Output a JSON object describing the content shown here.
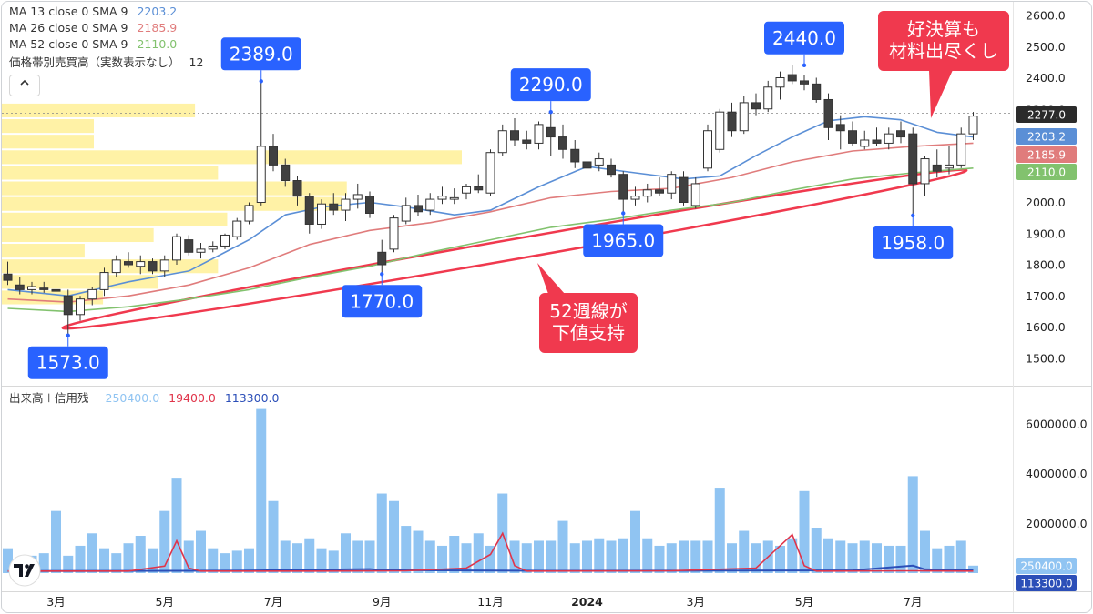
{
  "legend": {
    "ma13": {
      "label": "MA 13 close 0 SMA 9",
      "value": "2203.2"
    },
    "ma26": {
      "label": "MA 26 close 0 SMA 9",
      "value": "2185.9"
    },
    "ma52": {
      "label": "MA 52 close 0 SMA 9",
      "value": "2110.0"
    },
    "vp": {
      "label": "価格帯別売買高（実数表示なし）",
      "value": "12"
    },
    "collapse_icon": "chevron-up-icon"
  },
  "volume_legend": {
    "title": "出来高＋信用残",
    "v1": "250400.0",
    "v2": "19400.0",
    "v3": "113300.0"
  },
  "colors": {
    "ma13": "#5b8fd6",
    "ma26": "#e07c7c",
    "ma52": "#82c26e",
    "bull": "#ffffff",
    "bear": "#404040",
    "volume": "#90c4f2",
    "margin_buy": "#e0344a",
    "margin_sell": "#2c4fb8",
    "callout_blue": "#2962ff",
    "callout_red": "#f0394e",
    "profile": "#fff2a6"
  },
  "chart_data": {
    "type": "candlestick",
    "price_axis": {
      "min": 1420,
      "max": 2620,
      "ticks": [
        1500,
        1600,
        1700,
        1800,
        1900,
        2000,
        2100,
        2200,
        2300,
        2400,
        2500,
        2600
      ]
    },
    "volume_axis": {
      "min": 0,
      "max": 6800000,
      "ticks": [
        2000000,
        4000000,
        6000000
      ],
      "tick_labels": [
        "2000000.0",
        "4000000.0",
        "6000000.0"
      ]
    },
    "x_labels": [
      {
        "label": "3月",
        "index": 4
      },
      {
        "label": "5月",
        "index": 13
      },
      {
        "label": "7月",
        "index": 22
      },
      {
        "label": "9月",
        "index": 31
      },
      {
        "label": "11月",
        "index": 40
      },
      {
        "label": "2024",
        "index": 48
      },
      {
        "label": "3月",
        "index": 57
      },
      {
        "label": "5月",
        "index": 66
      },
      {
        "label": "7月",
        "index": 75
      }
    ],
    "candles": [
      [
        1770,
        1810,
        1735,
        1750
      ],
      [
        1735,
        1760,
        1705,
        1720
      ],
      [
        1720,
        1745,
        1705,
        1730
      ],
      [
        1725,
        1745,
        1710,
        1720
      ],
      [
        1720,
        1740,
        1705,
        1715
      ],
      [
        1700,
        1720,
        1573,
        1640
      ],
      [
        1640,
        1700,
        1620,
        1690
      ],
      [
        1690,
        1730,
        1670,
        1720
      ],
      [
        1720,
        1790,
        1700,
        1775
      ],
      [
        1775,
        1830,
        1760,
        1815
      ],
      [
        1810,
        1840,
        1790,
        1800
      ],
      [
        1795,
        1830,
        1770,
        1810
      ],
      [
        1810,
        1820,
        1770,
        1780
      ],
      [
        1780,
        1830,
        1760,
        1815
      ],
      [
        1815,
        1900,
        1800,
        1890
      ],
      [
        1880,
        1895,
        1830,
        1840
      ],
      [
        1840,
        1870,
        1820,
        1850
      ],
      [
        1850,
        1875,
        1840,
        1860
      ],
      [
        1860,
        1900,
        1850,
        1895
      ],
      [
        1890,
        1950,
        1880,
        1940
      ],
      [
        1940,
        2000,
        1930,
        1990
      ],
      [
        2000,
        2389,
        1990,
        2180
      ],
      [
        2180,
        2220,
        2100,
        2120
      ],
      [
        2120,
        2140,
        2050,
        2070
      ],
      [
        2070,
        2085,
        1990,
        2020
      ],
      [
        2020,
        2030,
        1900,
        1930
      ],
      [
        1930,
        2010,
        1915,
        1995
      ],
      [
        1995,
        2030,
        1960,
        1975
      ],
      [
        1975,
        2030,
        1940,
        2010
      ],
      [
        2010,
        2060,
        1980,
        2025
      ],
      [
        2020,
        2035,
        1950,
        1965
      ],
      [
        1840,
        1880,
        1770,
        1800
      ],
      [
        1850,
        1960,
        1840,
        1950
      ],
      [
        1940,
        2015,
        1930,
        1990
      ],
      [
        1990,
        2025,
        1955,
        1970
      ],
      [
        1975,
        2030,
        1960,
        2010
      ],
      [
        2010,
        2050,
        1995,
        2020
      ],
      [
        2010,
        2045,
        1995,
        2015
      ],
      [
        2030,
        2060,
        2010,
        2050
      ],
      [
        2050,
        2090,
        2030,
        2040
      ],
      [
        2030,
        2170,
        2020,
        2160
      ],
      [
        2160,
        2250,
        2150,
        2230
      ],
      [
        2230,
        2270,
        2180,
        2200
      ],
      [
        2200,
        2230,
        2170,
        2190
      ],
      [
        2190,
        2260,
        2170,
        2250
      ],
      [
        2240,
        2290,
        2150,
        2210
      ],
      [
        2210,
        2250,
        2140,
        2170
      ],
      [
        2170,
        2200,
        2110,
        2130
      ],
      [
        2130,
        2160,
        2100,
        2110
      ],
      [
        2120,
        2160,
        2100,
        2140
      ],
      [
        2120,
        2140,
        2080,
        2090
      ],
      [
        2090,
        2100,
        1965,
        2010
      ],
      [
        2010,
        2050,
        1990,
        2020
      ],
      [
        2020,
        2060,
        2000,
        2040
      ],
      [
        2040,
        2080,
        2020,
        2030
      ],
      [
        2030,
        2100,
        2010,
        2090
      ],
      [
        2080,
        2100,
        1990,
        2000
      ],
      [
        1990,
        2080,
        1980,
        2060
      ],
      [
        2110,
        2250,
        2100,
        2230
      ],
      [
        2170,
        2300,
        2160,
        2290
      ],
      [
        2290,
        2320,
        2210,
        2230
      ],
      [
        2230,
        2340,
        2220,
        2320
      ],
      [
        2320,
        2350,
        2280,
        2300
      ],
      [
        2300,
        2390,
        2290,
        2370
      ],
      [
        2370,
        2420,
        2330,
        2400
      ],
      [
        2410,
        2440,
        2380,
        2390
      ],
      [
        2390,
        2410,
        2360,
        2380
      ],
      [
        2380,
        2400,
        2320,
        2330
      ],
      [
        2330,
        2350,
        2200,
        2240
      ],
      [
        2250,
        2280,
        2170,
        2230
      ],
      [
        2230,
        2260,
        2180,
        2190
      ],
      [
        2180,
        2230,
        2170,
        2200
      ],
      [
        2200,
        2240,
        2180,
        2190
      ],
      [
        2190,
        2240,
        2170,
        2220
      ],
      [
        2230,
        2260,
        2190,
        2210
      ],
      [
        2220,
        2240,
        1958,
        2060
      ],
      [
        2060,
        2150,
        2020,
        2140
      ],
      [
        2120,
        2170,
        2080,
        2100
      ],
      [
        2110,
        2180,
        2090,
        2120
      ],
      [
        2120,
        2240,
        2110,
        2220
      ],
      [
        2220,
        2290,
        2200,
        2277
      ]
    ],
    "ma13": [
      [
        0,
        1720
      ],
      [
        5,
        1700
      ],
      [
        10,
        1745
      ],
      [
        15,
        1780
      ],
      [
        20,
        1880
      ],
      [
        23,
        1960
      ],
      [
        26,
        1985
      ],
      [
        30,
        2000
      ],
      [
        33,
        1985
      ],
      [
        37,
        1960
      ],
      [
        40,
        1975
      ],
      [
        44,
        2050
      ],
      [
        48,
        2115
      ],
      [
        52,
        2095
      ],
      [
        56,
        2075
      ],
      [
        59,
        2085
      ],
      [
        62,
        2150
      ],
      [
        65,
        2210
      ],
      [
        68,
        2262
      ],
      [
        71,
        2275
      ],
      [
        74,
        2265
      ],
      [
        77,
        2225
      ],
      [
        80,
        2210
      ]
    ],
    "ma26": [
      [
        0,
        1690
      ],
      [
        5,
        1680
      ],
      [
        10,
        1700
      ],
      [
        15,
        1735
      ],
      [
        20,
        1790
      ],
      [
        25,
        1865
      ],
      [
        30,
        1910
      ],
      [
        35,
        1935
      ],
      [
        40,
        1970
      ],
      [
        45,
        2015
      ],
      [
        50,
        2035
      ],
      [
        55,
        2045
      ],
      [
        60,
        2080
      ],
      [
        65,
        2130
      ],
      [
        70,
        2165
      ],
      [
        75,
        2180
      ],
      [
        80,
        2190
      ]
    ],
    "ma52": [
      [
        0,
        1660
      ],
      [
        5,
        1650
      ],
      [
        10,
        1665
      ],
      [
        15,
        1690
      ],
      [
        20,
        1720
      ],
      [
        25,
        1760
      ],
      [
        30,
        1795
      ],
      [
        35,
        1840
      ],
      [
        40,
        1880
      ],
      [
        45,
        1920
      ],
      [
        50,
        1945
      ],
      [
        55,
        1975
      ],
      [
        60,
        2000
      ],
      [
        65,
        2040
      ],
      [
        70,
        2075
      ],
      [
        75,
        2095
      ],
      [
        80,
        2110
      ]
    ],
    "volume": [
      1000000,
      600000,
      700000,
      800000,
      2500000,
      700000,
      1100000,
      1600000,
      1000000,
      800000,
      1200000,
      1500000,
      1000000,
      2500000,
      3800000,
      1300000,
      1700000,
      1000000,
      800000,
      900000,
      1000000,
      6600000,
      2900000,
      1300000,
      1200000,
      1400000,
      1000000,
      900000,
      1600000,
      1300000,
      1300000,
      3200000,
      2900000,
      1900000,
      1700000,
      1300000,
      1100000,
      1500000,
      1200000,
      1600000,
      1100000,
      3200000,
      1300000,
      1200000,
      1300000,
      1300000,
      2100000,
      1200000,
      1300000,
      1400000,
      1300000,
      1400000,
      2500000,
      1400000,
      1100000,
      1200000,
      1300000,
      1300000,
      1300000,
      3400000,
      1200000,
      1700000,
      1200000,
      1300000,
      1100000,
      1400000,
      3300000,
      1800000,
      1400000,
      1300000,
      1200000,
      1300000,
      1200000,
      1100000,
      1100000,
      3900000,
      1700000,
      1000000,
      1100000,
      1300000,
      300000
    ],
    "margin_buy": [
      [
        0,
        80000
      ],
      [
        10,
        80000
      ],
      [
        13,
        280000
      ],
      [
        14,
        1300000
      ],
      [
        15,
        200000
      ],
      [
        16,
        80000
      ],
      [
        25,
        80000
      ],
      [
        33,
        90000
      ],
      [
        38,
        200000
      ],
      [
        40,
        750000
      ],
      [
        41,
        1600000
      ],
      [
        42,
        300000
      ],
      [
        43,
        80000
      ],
      [
        55,
        90000
      ],
      [
        62,
        200000
      ],
      [
        65,
        1550000
      ],
      [
        66,
        300000
      ],
      [
        67,
        80000
      ],
      [
        75,
        90000
      ],
      [
        80,
        80000
      ]
    ],
    "margin_sell": [
      [
        0,
        80000
      ],
      [
        20,
        100000
      ],
      [
        30,
        160000
      ],
      [
        31,
        120000
      ],
      [
        45,
        90000
      ],
      [
        60,
        100000
      ],
      [
        70,
        110000
      ],
      [
        75,
        300000
      ],
      [
        76,
        150000
      ],
      [
        80,
        120000
      ]
    ],
    "volume_profile": [
      {
        "low": 2270,
        "high": 2320,
        "value": 0.42
      },
      {
        "low": 2220,
        "high": 2270,
        "value": 0.2
      },
      {
        "low": 2170,
        "high": 2220,
        "value": 0.2
      },
      {
        "low": 2120,
        "high": 2170,
        "value": 1.0
      },
      {
        "low": 2070,
        "high": 2120,
        "value": 0.47
      },
      {
        "low": 2020,
        "high": 2070,
        "value": 0.75
      },
      {
        "low": 1970,
        "high": 2020,
        "value": 0.74
      },
      {
        "low": 1920,
        "high": 1970,
        "value": 0.49
      },
      {
        "low": 1870,
        "high": 1920,
        "value": 0.33
      },
      {
        "low": 1820,
        "high": 1870,
        "value": 0.18
      },
      {
        "low": 1770,
        "high": 1820,
        "value": 0.47
      },
      {
        "low": 1720,
        "high": 1770,
        "value": 0.34
      },
      {
        "low": 1670,
        "high": 1720,
        "value": 0.22
      }
    ],
    "current_price": 2277,
    "price_tags": [
      {
        "value": 2277,
        "label": "2277.0",
        "color": "#2b2b2b"
      },
      {
        "value": 2203.2,
        "label": "2203.2",
        "color": "#5b8fd6"
      },
      {
        "value": 2185.9,
        "label": "2185.9",
        "color": "#e07c7c"
      },
      {
        "value": 2110.0,
        "label": "2110.0",
        "color": "#82c26e"
      }
    ],
    "volume_tags": [
      {
        "value": 250400,
        "label": "250400.0",
        "color": "#90c4f2"
      },
      {
        "value": 113300,
        "label": "113300.0",
        "color": "#2c4fb8"
      }
    ]
  },
  "annotations": {
    "peaks": [
      {
        "index": 21,
        "value": 2389,
        "text": "2389.0",
        "side": "above"
      },
      {
        "index": 45,
        "value": 2290,
        "text": "2290.0",
        "side": "above"
      },
      {
        "index": 66,
        "value": 2440,
        "text": "2440.0",
        "side": "above"
      },
      {
        "index": 5,
        "value": 1573,
        "text": "1573.0",
        "side": "below"
      },
      {
        "index": 31,
        "value": 1770,
        "text": "1770.0",
        "side": "below"
      },
      {
        "index": 51,
        "value": 1965,
        "text": "1965.0",
        "side": "below"
      },
      {
        "index": 75,
        "value": 1958,
        "text": "1958.0",
        "side": "below"
      }
    ],
    "note_support": [
      "52週線が",
      "下値支持"
    ],
    "note_earnings": [
      "好決算も",
      "材料出尽くし"
    ]
  }
}
